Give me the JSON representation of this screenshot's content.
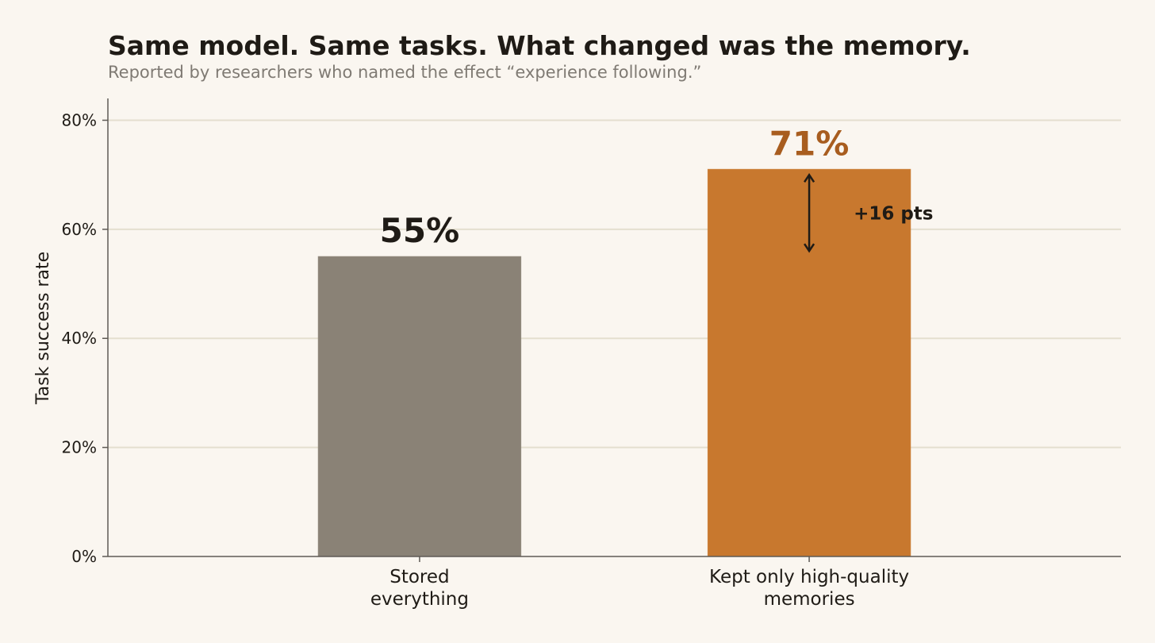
{
  "chart_data": {
    "type": "bar",
    "title": "Same model. Same tasks. What changed was the memory.",
    "subtitle": "Reported by researchers who named the effect “experience following.”",
    "ylabel": "Task success rate",
    "xlabel": "",
    "ylim": [
      0,
      84
    ],
    "yticks": [
      0,
      20,
      40,
      60,
      80
    ],
    "ytick_labels": [
      "0%",
      "20%",
      "40%",
      "60%",
      "80%"
    ],
    "grid": true,
    "categories": [
      [
        "Stored",
        "everything"
      ],
      [
        "Kept only high-quality",
        "memories"
      ]
    ],
    "values": [
      55,
      71
    ],
    "value_labels": [
      "55%",
      "71%"
    ],
    "colors": [
      "#8a8276",
      "#c8782e"
    ],
    "value_label_colors": [
      "#1f1b16",
      "#a85d1f"
    ],
    "annotation": {
      "text": "+16 pts",
      "from": 55,
      "to": 71,
      "bar_index": 1
    }
  },
  "colors": {
    "background": "#faf6f0",
    "grid": "#e4dfcf",
    "axis": "#5e5a55",
    "text": "#1f1b16",
    "subtitle": "#7f7a73"
  }
}
